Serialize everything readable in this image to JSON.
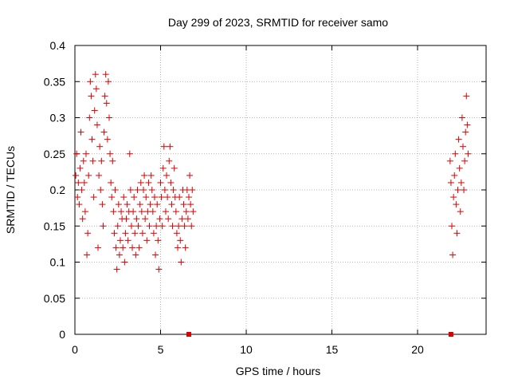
{
  "chart_data": {
    "type": "scatter",
    "title": "Day 299 of 2023, SRMTID for receiver samo",
    "xlabel": "GPS time / hours",
    "ylabel": "SRMTID / TECUs",
    "xlim": [
      0,
      24
    ],
    "ylim": [
      0,
      0.4
    ],
    "x_ticks": [
      0,
      5,
      10,
      15,
      20
    ],
    "y_ticks": [
      0,
      0.05,
      0.1,
      0.15,
      0.2,
      0.25,
      0.3,
      0.35,
      0.4
    ],
    "x_tick_labels": [
      "0",
      "5",
      "10",
      "15",
      "20"
    ],
    "y_tick_labels": [
      "0",
      "0.05",
      "0.1",
      "0.15",
      "0.2",
      "0.25",
      "0.3",
      "0.35",
      "0.4"
    ],
    "grid": true,
    "marker": "plus",
    "color": "#dd0000",
    "series": [
      {
        "name": "SRMTID",
        "points": [
          [
            0.05,
            0.22
          ],
          [
            0.1,
            0.25
          ],
          [
            0.15,
            0.19
          ],
          [
            0.2,
            0.21
          ],
          [
            0.25,
            0.18
          ],
          [
            0.3,
            0.23
          ],
          [
            0.35,
            0.28
          ],
          [
            0.4,
            0.2
          ],
          [
            0.45,
            0.16
          ],
          [
            0.5,
            0.24
          ],
          [
            0.55,
            0.21
          ],
          [
            0.6,
            0.17
          ],
          [
            0.65,
            0.25
          ],
          [
            0.7,
            0.11
          ],
          [
            0.75,
            0.14
          ],
          [
            0.8,
            0.22
          ],
          [
            0.85,
            0.3
          ],
          [
            0.9,
            0.35
          ],
          [
            0.95,
            0.33
          ],
          [
            1.0,
            0.27
          ],
          [
            1.05,
            0.24
          ],
          [
            1.1,
            0.19
          ],
          [
            1.15,
            0.31
          ],
          [
            1.2,
            0.36
          ],
          [
            1.25,
            0.34
          ],
          [
            1.3,
            0.29
          ],
          [
            1.35,
            0.12
          ],
          [
            1.4,
            0.22
          ],
          [
            1.45,
            0.26
          ],
          [
            1.5,
            0.2
          ],
          [
            1.55,
            0.24
          ],
          [
            1.6,
            0.18
          ],
          [
            1.65,
            0.15
          ],
          [
            1.7,
            0.28
          ],
          [
            1.75,
            0.33
          ],
          [
            1.8,
            0.36
          ],
          [
            1.85,
            0.32
          ],
          [
            1.9,
            0.27
          ],
          [
            1.95,
            0.35
          ],
          [
            2.0,
            0.3
          ],
          [
            2.05,
            0.25
          ],
          [
            2.1,
            0.21
          ],
          [
            2.15,
            0.19
          ],
          [
            2.2,
            0.24
          ],
          [
            2.25,
            0.17
          ],
          [
            2.3,
            0.14
          ],
          [
            2.35,
            0.2
          ],
          [
            2.4,
            0.12
          ],
          [
            2.45,
            0.09
          ],
          [
            2.5,
            0.15
          ],
          [
            2.55,
            0.18
          ],
          [
            2.6,
            0.11
          ],
          [
            2.65,
            0.13
          ],
          [
            2.7,
            0.17
          ],
          [
            2.75,
            0.16
          ],
          [
            2.8,
            0.12
          ],
          [
            2.85,
            0.19
          ],
          [
            2.9,
            0.1
          ],
          [
            2.95,
            0.14
          ],
          [
            3.0,
            0.16
          ],
          [
            3.05,
            0.18
          ],
          [
            3.1,
            0.13
          ],
          [
            3.15,
            0.17
          ],
          [
            3.2,
            0.25
          ],
          [
            3.25,
            0.2
          ],
          [
            3.3,
            0.15
          ],
          [
            3.35,
            0.12
          ],
          [
            3.4,
            0.17
          ],
          [
            3.45,
            0.19
          ],
          [
            3.5,
            0.14
          ],
          [
            3.55,
            0.11
          ],
          [
            3.6,
            0.16
          ],
          [
            3.65,
            0.2
          ],
          [
            3.7,
            0.15
          ],
          [
            3.75,
            0.12
          ],
          [
            3.8,
            0.18
          ],
          [
            3.85,
            0.21
          ],
          [
            3.9,
            0.17
          ],
          [
            3.95,
            0.14
          ],
          [
            4.0,
            0.2
          ],
          [
            4.05,
            0.22
          ],
          [
            4.1,
            0.16
          ],
          [
            4.15,
            0.19
          ],
          [
            4.2,
            0.13
          ],
          [
            4.25,
            0.17
          ],
          [
            4.3,
            0.21
          ],
          [
            4.35,
            0.15
          ],
          [
            4.4,
            0.18
          ],
          [
            4.45,
            0.22
          ],
          [
            4.5,
            0.2
          ],
          [
            4.55,
            0.17
          ],
          [
            4.6,
            0.14
          ],
          [
            4.65,
            0.19
          ],
          [
            4.7,
            0.11
          ],
          [
            4.75,
            0.15
          ],
          [
            4.8,
            0.18
          ],
          [
            4.85,
            0.13
          ],
          [
            4.9,
            0.09
          ],
          [
            4.95,
            0.16
          ],
          [
            5.0,
            0.21
          ],
          [
            5.05,
            0.19
          ],
          [
            5.1,
            0.15
          ],
          [
            5.15,
            0.23
          ],
          [
            5.2,
            0.26
          ],
          [
            5.25,
            0.2
          ],
          [
            5.3,
            0.17
          ],
          [
            5.35,
            0.22
          ],
          [
            5.4,
            0.19
          ],
          [
            5.45,
            0.16
          ],
          [
            5.5,
            0.24
          ],
          [
            5.55,
            0.26
          ],
          [
            5.6,
            0.21
          ],
          [
            5.65,
            0.18
          ],
          [
            5.7,
            0.15
          ],
          [
            5.75,
            0.2
          ],
          [
            5.8,
            0.23
          ],
          [
            5.85,
            0.19
          ],
          [
            5.9,
            0.17
          ],
          [
            5.95,
            0.14
          ],
          [
            6.0,
            0.12
          ],
          [
            6.05,
            0.15
          ],
          [
            6.1,
            0.19
          ],
          [
            6.15,
            0.13
          ],
          [
            6.2,
            0.1
          ],
          [
            6.25,
            0.16
          ],
          [
            6.3,
            0.2
          ],
          [
            6.35,
            0.18
          ],
          [
            6.4,
            0.15
          ],
          [
            6.45,
            0.12
          ],
          [
            6.5,
            0.17
          ],
          [
            6.55,
            0.2
          ],
          [
            6.6,
            0.16
          ],
          [
            6.65,
            0.19
          ],
          [
            6.7,
            0.22
          ],
          [
            6.75,
            0.18
          ],
          [
            6.8,
            0.15
          ],
          [
            6.85,
            0.2
          ],
          [
            6.9,
            0.17
          ],
          [
            21.9,
            0.24
          ],
          [
            21.95,
            0.21
          ],
          [
            22.0,
            0.15
          ],
          [
            22.05,
            0.11
          ],
          [
            22.1,
            0.19
          ],
          [
            22.15,
            0.22
          ],
          [
            22.2,
            0.25
          ],
          [
            22.25,
            0.18
          ],
          [
            22.3,
            0.14
          ],
          [
            22.35,
            0.2
          ],
          [
            22.4,
            0.27
          ],
          [
            22.45,
            0.23
          ],
          [
            22.5,
            0.17
          ],
          [
            22.55,
            0.21
          ],
          [
            22.6,
            0.3
          ],
          [
            22.65,
            0.26
          ],
          [
            22.7,
            0.2
          ],
          [
            22.75,
            0.24
          ],
          [
            22.8,
            0.28
          ],
          [
            22.85,
            0.33
          ],
          [
            22.9,
            0.29
          ],
          [
            22.95,
            0.25
          ]
        ]
      },
      {
        "name": "zero-marker",
        "points": [
          [
            6.65,
            0.0
          ],
          [
            21.95,
            0.0
          ]
        ]
      }
    ]
  }
}
